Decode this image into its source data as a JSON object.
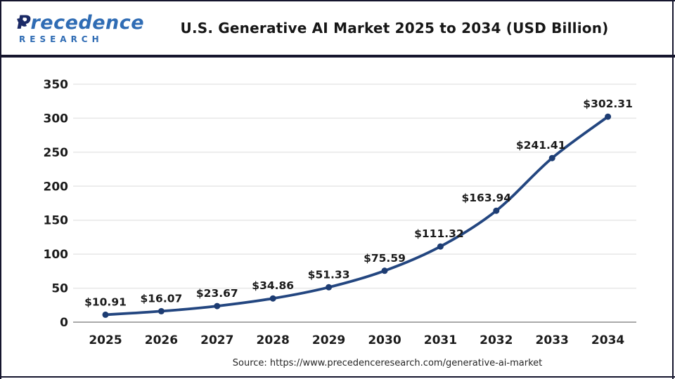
{
  "logo": {
    "name": "Precedence",
    "subtitle": "RESEARCH"
  },
  "header": {
    "title": "U.S. Generative AI Market 2025 to 2034 (USD Billion)"
  },
  "footer": {
    "source": "Source: https://www.precedenceresearch.com/generative-ai-market"
  },
  "chart_data": {
    "type": "line",
    "title": "U.S. Generative AI Market 2025 to 2034 (USD Billion)",
    "categories": [
      "2025",
      "2026",
      "2027",
      "2028",
      "2029",
      "2030",
      "2031",
      "2032",
      "2033",
      "2034"
    ],
    "series": [
      {
        "name": "U.S. Generative AI Market (USD Billion)",
        "values": [
          10.91,
          16.07,
          23.67,
          34.86,
          51.33,
          75.59,
          111.32,
          163.94,
          241.41,
          302.31
        ]
      }
    ],
    "data_labels": [
      "$10.91",
      "$16.07",
      "$23.67",
      "$34.86",
      "$51.33",
      "$75.59",
      "$111.32",
      "$163.94",
      "$241.41",
      "$302.31"
    ],
    "ylim": [
      0,
      350
    ],
    "yticks": [
      0,
      50,
      100,
      150,
      200,
      250,
      300,
      350
    ],
    "grid": "horizontal",
    "legend": "none",
    "colors": {
      "line": "#234680",
      "marker": "#1d3c72",
      "grid": "#e7e7e7",
      "axis": "#a9a9a9",
      "text": "#1b1b1b"
    }
  }
}
